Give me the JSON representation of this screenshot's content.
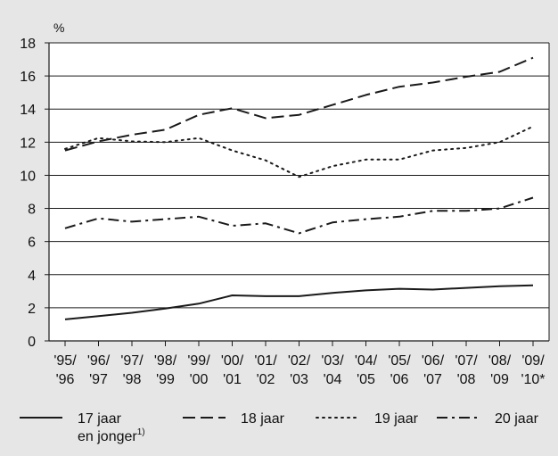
{
  "chart_data": {
    "type": "line",
    "title": "",
    "ylabel": "%",
    "xlabel": "",
    "ylim": [
      0,
      18
    ],
    "yticks": [
      0,
      2,
      4,
      6,
      8,
      10,
      12,
      14,
      16,
      18
    ],
    "grid": true,
    "legend_position": "bottom",
    "categories": [
      [
        "'95/",
        "'96"
      ],
      [
        "'96/",
        "'97"
      ],
      [
        "'97/",
        "'98"
      ],
      [
        "'98/",
        "'99"
      ],
      [
        "'99/",
        "'00"
      ],
      [
        "'00/",
        "'01"
      ],
      [
        "'01/",
        "'02"
      ],
      [
        "'02/",
        "'03"
      ],
      [
        "'03/",
        "'04"
      ],
      [
        "'04/",
        "'05"
      ],
      [
        "'05/",
        "'06"
      ],
      [
        "'06/",
        "'07"
      ],
      [
        "'07/",
        "'08"
      ],
      [
        "'08/",
        "'09"
      ],
      [
        "'09/",
        "'10*"
      ]
    ],
    "series": [
      {
        "name": "17 jaar en jonger",
        "legend_lines": [
          "17 jaar",
          "en jonger"
        ],
        "legend_sup": "1)",
        "style": "solid",
        "values": [
          1.3,
          1.5,
          1.7,
          1.95,
          2.25,
          2.75,
          2.7,
          2.7,
          2.9,
          3.05,
          3.15,
          3.1,
          3.2,
          3.3,
          3.35
        ]
      },
      {
        "name": "18 jaar",
        "legend_lines": [
          "18 jaar"
        ],
        "style": "dashed",
        "values": [
          11.5,
          12.05,
          12.45,
          12.75,
          13.65,
          14.05,
          13.45,
          13.65,
          14.25,
          14.85,
          15.35,
          15.6,
          15.95,
          16.25,
          17.1
        ]
      },
      {
        "name": "19 jaar",
        "legend_lines": [
          "19 jaar"
        ],
        "style": "dotted",
        "values": [
          11.6,
          12.25,
          12.05,
          12.0,
          12.25,
          11.5,
          10.9,
          9.9,
          10.55,
          10.95,
          10.95,
          11.5,
          11.65,
          12.0,
          12.95
        ]
      },
      {
        "name": "20 jaar",
        "legend_lines": [
          "20 jaar"
        ],
        "style": "dashdot",
        "values": [
          6.8,
          7.4,
          7.2,
          7.35,
          7.5,
          6.95,
          7.1,
          6.5,
          7.15,
          7.35,
          7.5,
          7.85,
          7.85,
          8.0,
          8.65
        ]
      }
    ],
    "colors": {
      "line": "#1a1a1a",
      "grid": "#1a1a1a",
      "background": "#e6e6e6",
      "plot_background": "#ffffff"
    }
  }
}
